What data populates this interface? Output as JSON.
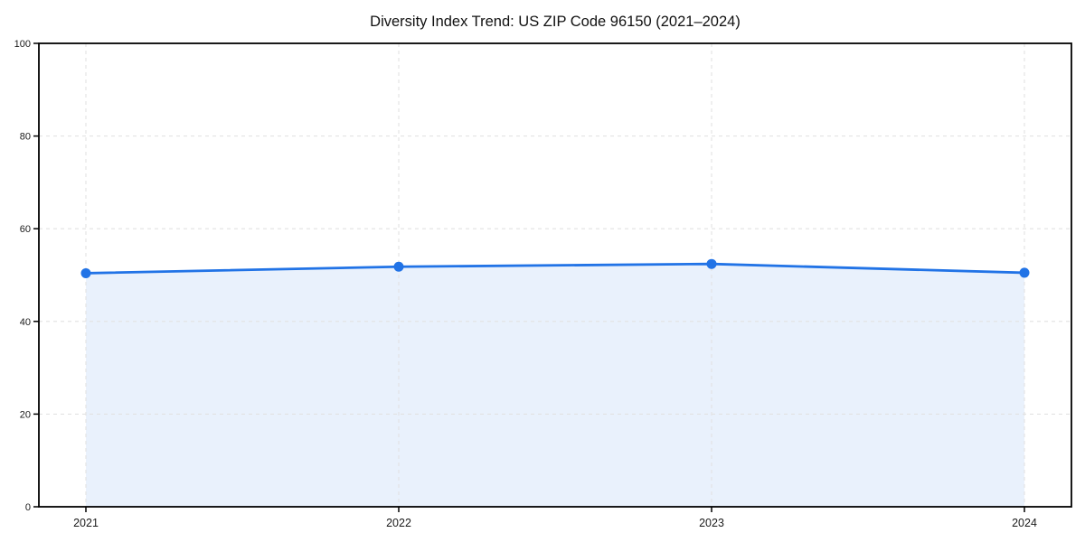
{
  "page": {
    "background": "#ffffff"
  },
  "chart_data": {
    "type": "area",
    "title": "Diversity Index Trend: US ZIP Code 96150 (2021–2024)",
    "categories": [
      "2021",
      "2022",
      "2023",
      "2024"
    ],
    "series": [
      {
        "name": "Diversity Index",
        "values": [
          50.4,
          51.8,
          52.4,
          50.5
        ]
      }
    ],
    "xlabel": "",
    "ylabel": "",
    "ylim": [
      0,
      100
    ],
    "yticks": [
      0,
      20,
      40,
      60,
      80,
      100
    ],
    "grid": "dashed-both-axes",
    "legend": "none",
    "marker": "circle",
    "colors": {
      "line": "#2173e6",
      "marker": "#2173e6",
      "area_fill": "#e9f1fc",
      "gridline": "#e2e2e2",
      "axis_spine": "#000000",
      "tick_label": "#1a1a1a",
      "title": "#111111",
      "background": "#ffffff"
    }
  }
}
